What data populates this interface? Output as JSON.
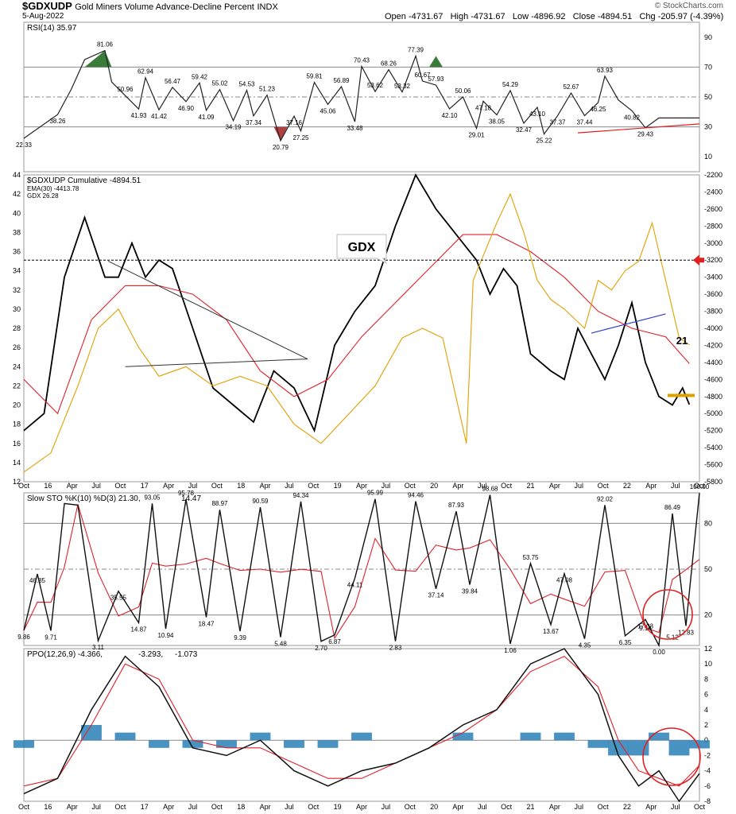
{
  "header": {
    "symbol": "$GDXUDP",
    "name": "Gold Miners Volume Advance-Decline Percent",
    "exchange": "INDX",
    "date": "5-Aug-2022",
    "open": "Open -4731.67",
    "high": "High -4731.67",
    "low": "Low -4896.92",
    "close": "Close -4894.51",
    "chg": "Chg -205.97 (-4.39%)",
    "watermark": "© StockCharts.com"
  },
  "colors": {
    "price": "#000000",
    "ema": "#e0202a",
    "gdx": "#e0a000",
    "rsi_over": "#3a7d3a",
    "rsi_under": "#b04040",
    "ppo_hist": "#2980b9",
    "annotation_red": "#e02020",
    "trend_blue": "#3040d0",
    "guide_gray": "#888888"
  },
  "time_axis": {
    "labels": [
      "Oct",
      "16",
      "Apr",
      "Jul",
      "Oct",
      "17",
      "Apr",
      "Jul",
      "Oct",
      "18",
      "Apr",
      "Jul",
      "Oct",
      "19",
      "Apr",
      "Jul",
      "Oct",
      "20",
      "Apr",
      "Jul",
      "Oct",
      "21",
      "Apr",
      "Jul",
      "Oct",
      "22",
      "Apr",
      "Jul",
      "Oct"
    ],
    "start": "2015-10",
    "end": "2022-10"
  },
  "annotations": {
    "gdx_box": "GDX",
    "gdx_level": "21"
  },
  "chart_data": [
    {
      "type": "line",
      "panel": "rsi",
      "legend": "RSI(14) 35.97",
      "ylim": [
        0,
        100
      ],
      "y_ticks": [
        10,
        30,
        50,
        70,
        90
      ],
      "reference_lines": [
        30,
        50,
        70
      ],
      "x": [
        0,
        0.05,
        0.07,
        0.09,
        0.12,
        0.13,
        0.15,
        0.17,
        0.18,
        0.2,
        0.22,
        0.24,
        0.26,
        0.27,
        0.29,
        0.31,
        0.33,
        0.34,
        0.36,
        0.38,
        0.4,
        0.41,
        0.43,
        0.45,
        0.47,
        0.49,
        0.5,
        0.52,
        0.54,
        0.56,
        0.58,
        0.59,
        0.61,
        0.63,
        0.65,
        0.67,
        0.68,
        0.7,
        0.72,
        0.74,
        0.76,
        0.77,
        0.79,
        0.81,
        0.83,
        0.85,
        0.86,
        0.88,
        0.9,
        0.92,
        0.94,
        0.96,
        0.97,
        0.99,
        1.0
      ],
      "values": [
        22.33,
        38.26,
        55,
        75,
        81.06,
        60,
        50.96,
        41.93,
        62.94,
        41.42,
        56.47,
        46.9,
        59.42,
        41.09,
        55.02,
        34.19,
        54.53,
        37.34,
        51.23,
        20.79,
        37.16,
        27.25,
        59.81,
        45.06,
        56.89,
        33.48,
        70.43,
        53.62,
        68.26,
        53.32,
        77.39,
        60.67,
        57.93,
        42.1,
        50.06,
        29.01,
        47.18,
        38.05,
        54.29,
        32.47,
        43.1,
        25.22,
        37.37,
        52.67,
        37.44,
        46.25,
        63.93,
        48,
        40.82,
        29.43,
        35.97,
        35.97,
        35.97,
        35.97,
        35.97
      ],
      "point_labels": [
        "22.33",
        "38.26",
        "",
        "",
        "81.06",
        "",
        "50.96",
        "41.93",
        "62.94",
        "41.42",
        "56.47",
        "46.90",
        "59.42",
        "41.09",
        "55.02",
        "34.19",
        "54.53",
        "37.34",
        "51.23",
        "20.79",
        "37.16",
        "27.25",
        "59.81",
        "45.06",
        "56.89",
        "33.48",
        "70.43",
        "53.62",
        "68.26",
        "53.32",
        "77.39",
        "60.67",
        "57.93",
        "42.10",
        "50.06",
        "29.01",
        "47.18",
        "38.05",
        "54.29",
        "32.47",
        "43.10",
        "25.22",
        "37.37",
        "52.67",
        "37.44",
        "46.25",
        "63.93",
        "",
        "40.82",
        "29.43",
        "",
        "",
        "",
        "",
        ""
      ]
    },
    {
      "type": "line",
      "panel": "main",
      "series": [
        {
          "name": "$GDXUDP Cumulative -4894.51",
          "axis": "right",
          "x": [
            0,
            0.03,
            0.06,
            0.09,
            0.12,
            0.14,
            0.16,
            0.18,
            0.2,
            0.22,
            0.25,
            0.28,
            0.31,
            0.34,
            0.37,
            0.4,
            0.43,
            0.46,
            0.49,
            0.52,
            0.55,
            0.58,
            0.61,
            0.63,
            0.65,
            0.67,
            0.69,
            0.71,
            0.73,
            0.75,
            0.78,
            0.8,
            0.82,
            0.84,
            0.86,
            0.88,
            0.9,
            0.92,
            0.94,
            0.96,
            0.975,
            0.985
          ],
          "values": [
            -5200,
            -5000,
            -3400,
            -2700,
            -3400,
            -3400,
            -3000,
            -3400,
            -3200,
            -3300,
            -4000,
            -4700,
            -4900,
            -5100,
            -4500,
            -4700,
            -5200,
            -4200,
            -3800,
            -3500,
            -2800,
            -2200,
            -2600,
            -2800,
            -3000,
            -3200,
            -3600,
            -3300,
            -3500,
            -4300,
            -4500,
            -4600,
            -4000,
            -4300,
            -4600,
            -4200,
            -3700,
            -4400,
            -4800,
            -4900,
            -4700,
            -4894.51
          ]
        },
        {
          "name": "EMA(30) -4413.78",
          "axis": "right",
          "x": [
            0,
            0.05,
            0.1,
            0.15,
            0.2,
            0.25,
            0.3,
            0.35,
            0.4,
            0.45,
            0.5,
            0.55,
            0.6,
            0.65,
            0.7,
            0.75,
            0.8,
            0.85,
            0.9,
            0.95,
            0.985
          ],
          "values": [
            -4600,
            -5000,
            -3900,
            -3500,
            -3500,
            -3600,
            -3900,
            -4500,
            -4800,
            -4600,
            -4100,
            -3700,
            -3300,
            -2900,
            -2900,
            -3100,
            -3400,
            -3800,
            -4000,
            -4100,
            -4413.78
          ]
        },
        {
          "name": "GDX 26.28",
          "axis": "left",
          "x": [
            0,
            0.04,
            0.08,
            0.11,
            0.14,
            0.17,
            0.2,
            0.24,
            0.28,
            0.32,
            0.36,
            0.4,
            0.44,
            0.48,
            0.52,
            0.56,
            0.59,
            0.62,
            0.655,
            0.665,
            0.7,
            0.72,
            0.74,
            0.76,
            0.78,
            0.8,
            0.83,
            0.85,
            0.87,
            0.89,
            0.91,
            0.93,
            0.95,
            0.97,
            0.985
          ],
          "values": [
            13,
            15,
            22,
            28,
            30,
            26,
            23,
            24,
            22,
            23,
            22,
            18,
            16,
            19,
            22,
            27,
            28,
            27,
            16,
            33,
            39,
            42,
            38,
            33,
            31,
            30,
            28,
            33,
            32,
            34,
            35,
            39,
            33,
            27,
            26.28
          ]
        }
      ],
      "left_axis_ticks": [
        12,
        14,
        16,
        18,
        20,
        22,
        24,
        26,
        28,
        30,
        32,
        34,
        36,
        38,
        40,
        42,
        44
      ],
      "right_axis_ticks": [
        -2200,
        -2400,
        -2600,
        -2800,
        -3000,
        -3200,
        -3400,
        -3600,
        -3800,
        -4000,
        -4200,
        -4400,
        -4600,
        -4800,
        -5000,
        -5200,
        -5400,
        -5600,
        -5800
      ],
      "horizontal_line": -3200
    },
    {
      "type": "line",
      "panel": "stochastic",
      "legend": "Slow STO %K(10) %D(3) 21.30, 14.47",
      "ylim": [
        0,
        100
      ],
      "y_ticks": [
        20,
        50,
        80
      ],
      "reference_lines": [
        20,
        50,
        80
      ],
      "x": [
        0,
        0.02,
        0.04,
        0.06,
        0.08,
        0.11,
        0.14,
        0.17,
        0.19,
        0.21,
        0.24,
        0.27,
        0.29,
        0.32,
        0.35,
        0.38,
        0.41,
        0.44,
        0.46,
        0.49,
        0.52,
        0.55,
        0.58,
        0.61,
        0.64,
        0.66,
        0.69,
        0.72,
        0.75,
        0.78,
        0.8,
        0.83,
        0.86,
        0.89,
        0.92,
        0.94,
        0.96,
        0.98,
        1.0
      ],
      "values": [
        9.86,
        46.85,
        9.71,
        93,
        92,
        3.11,
        35.55,
        14.87,
        93.05,
        10.94,
        95.78,
        18.47,
        88.97,
        9.39,
        90.59,
        5.48,
        94.34,
        2.7,
        6.87,
        44.11,
        95.99,
        2.83,
        94.46,
        37.14,
        87.93,
        39.84,
        98.68,
        1.06,
        53.75,
        13.67,
        47.08,
        4.35,
        92.02,
        6.35,
        17.03,
        0.0,
        86.49,
        12.83,
        100.0
      ],
      "final_values": {
        "k": 21.3,
        "d": 14.47,
        "recent_low_1": 9.14,
        "recent_low_2": 5.12
      },
      "point_labels": [
        "9.86",
        "46.85",
        "9.71",
        "",
        "",
        "3.11",
        "35.55",
        "14.87",
        "93.05",
        "10.94",
        "95.78",
        "18.47",
        "88.97",
        "9.39",
        "90.59",
        "5.48",
        "94.34",
        "2.70",
        "6.87",
        "44.11",
        "95.99",
        "2.83",
        "94.46",
        "37.14",
        "87.93",
        "39.84",
        "98.68",
        "1.06",
        "53.75",
        "13.67",
        "47.08",
        "4.35",
        "92.02",
        "6.35",
        "17.03",
        "0.00",
        "86.49",
        "12.83",
        "100.00"
      ]
    },
    {
      "type": "line",
      "panel": "ppo",
      "legend": "PPO(12,26,9) -4.366, -3.293, -1.073",
      "legend_parts": [
        "PPO(12,26,9) -4.366,",
        "-3.293,",
        "-1.073"
      ],
      "ylim": [
        -8,
        12
      ],
      "y_ticks": [
        -8,
        -6,
        -4,
        -2,
        0,
        2,
        4,
        6,
        8,
        10,
        12
      ],
      "x": [
        0,
        0.05,
        0.1,
        0.15,
        0.2,
        0.25,
        0.3,
        0.35,
        0.4,
        0.45,
        0.5,
        0.55,
        0.6,
        0.65,
        0.7,
        0.75,
        0.8,
        0.85,
        0.88,
        0.91,
        0.94,
        0.97,
        1.0
      ],
      "ppo": [
        -7,
        -5,
        4,
        11,
        7,
        -1,
        -2,
        0,
        -4,
        -6,
        -4,
        -3,
        -1,
        2,
        4,
        10,
        12,
        6,
        -2,
        -6,
        -4,
        -8,
        -4.366
      ],
      "signal": [
        -6,
        -5,
        2,
        10,
        8,
        0,
        -1,
        -1,
        -3,
        -5,
        -5,
        -3,
        -1,
        1,
        4,
        9,
        11,
        7,
        0,
        -4,
        -5,
        -6,
        -3.293
      ],
      "histogram": [
        -1,
        0,
        2,
        1,
        -1,
        -1,
        -1,
        1,
        -1,
        -1,
        1,
        0,
        0,
        1,
        0,
        1,
        1,
        -1,
        -2,
        -2,
        1,
        -2,
        -1.073
      ]
    }
  ]
}
